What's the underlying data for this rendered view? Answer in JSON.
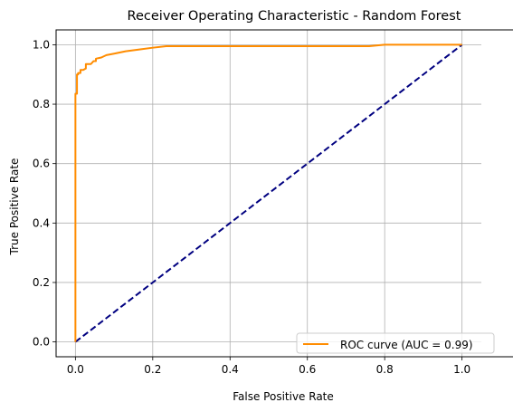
{
  "chart_data": {
    "type": "line",
    "title": "Receiver Operating Characteristic - Random Forest",
    "xlabel": "False Positive Rate",
    "ylabel": "True Positive Rate",
    "xlim": [
      -0.05,
      1.05
    ],
    "ylim": [
      -0.05,
      1.05
    ],
    "xticks": [
      0.0,
      0.2,
      0.4,
      0.6,
      0.8,
      1.0
    ],
    "yticks": [
      0.0,
      0.2,
      0.4,
      0.6,
      0.8,
      1.0
    ],
    "xtick_labels": [
      "0.0",
      "0.2",
      "0.4",
      "0.6",
      "0.8",
      "1.0"
    ],
    "ytick_labels": [
      "0.0",
      "0.2",
      "0.4",
      "0.6",
      "0.8",
      "1.0"
    ],
    "grid": true,
    "legend_position": "lower-right",
    "series": [
      {
        "name": "ROC curve (AUC = 0.99)",
        "color": "#ff8c00",
        "style": "solid",
        "x": [
          0.0,
          0.0,
          0.0,
          0.004,
          0.004,
          0.007,
          0.007,
          0.013,
          0.013,
          0.02,
          0.027,
          0.027,
          0.04,
          0.047,
          0.053,
          0.053,
          0.067,
          0.08,
          0.1,
          0.13,
          0.17,
          0.2,
          0.235,
          0.5,
          0.76,
          0.8,
          1.0
        ],
        "y": [
          0.0,
          0.83,
          0.835,
          0.835,
          0.9,
          0.9,
          0.905,
          0.905,
          0.915,
          0.915,
          0.92,
          0.935,
          0.935,
          0.945,
          0.945,
          0.953,
          0.957,
          0.965,
          0.97,
          0.978,
          0.985,
          0.99,
          0.995,
          0.995,
          0.995,
          1.0,
          1.0
        ]
      },
      {
        "name": "",
        "color": "#000080",
        "style": "dashed",
        "x": [
          0.0,
          1.0
        ],
        "y": [
          0.0,
          1.0
        ]
      }
    ]
  }
}
